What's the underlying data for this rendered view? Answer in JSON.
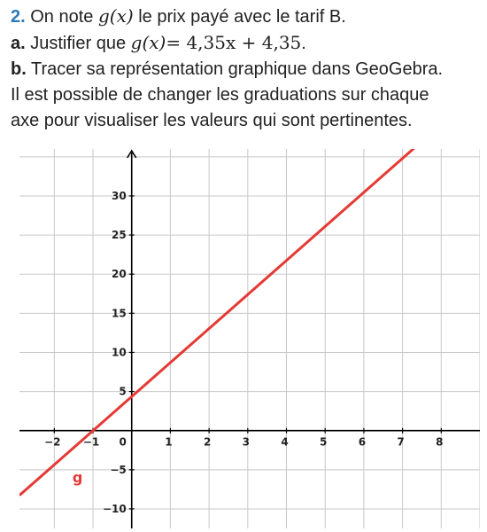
{
  "question": {
    "number": "2.",
    "intro_before": "On note",
    "intro_math": "g(x)",
    "intro_after": "le prix payé avec le tarif B."
  },
  "part_a": {
    "label": "a.",
    "text": "Justifier que",
    "math_lhs": "g(x)",
    "math_rhs": "= 4,35x + 4,35",
    "end": "."
  },
  "part_b": {
    "label": "b.",
    "line1": "Tracer sa représentation graphique dans GeoGebra.",
    "line2": "Il est possible de changer les graduations sur chaque",
    "line3": "axe pour visualiser les valeurs qui sont pertinentes."
  },
  "chart_data": {
    "type": "line",
    "title": "",
    "xlabel": "",
    "ylabel": "",
    "xlim": [
      -2.9,
      9.0
    ],
    "ylim": [
      -12.5,
      36.0
    ],
    "grid": true,
    "x_ticks": [
      -2,
      -1,
      0,
      1,
      2,
      3,
      4,
      5,
      6,
      7,
      8
    ],
    "x_tick_labels": [
      "−2",
      "−1",
      "0",
      "1",
      "2",
      "3",
      "4",
      "5",
      "6",
      "7",
      "8"
    ],
    "y_ticks": [
      -10,
      -5,
      5,
      10,
      15,
      20,
      25,
      30
    ],
    "y_tick_labels": [
      "−10",
      "−5",
      "5",
      "10",
      "15",
      "20",
      "25",
      "30"
    ],
    "series": [
      {
        "name": "g",
        "slope": 4.35,
        "intercept": 4.35,
        "color": "#e53935",
        "x": [
          -2.9,
          7.4
        ],
        "y": [
          -8.27,
          36.54
        ]
      }
    ]
  }
}
